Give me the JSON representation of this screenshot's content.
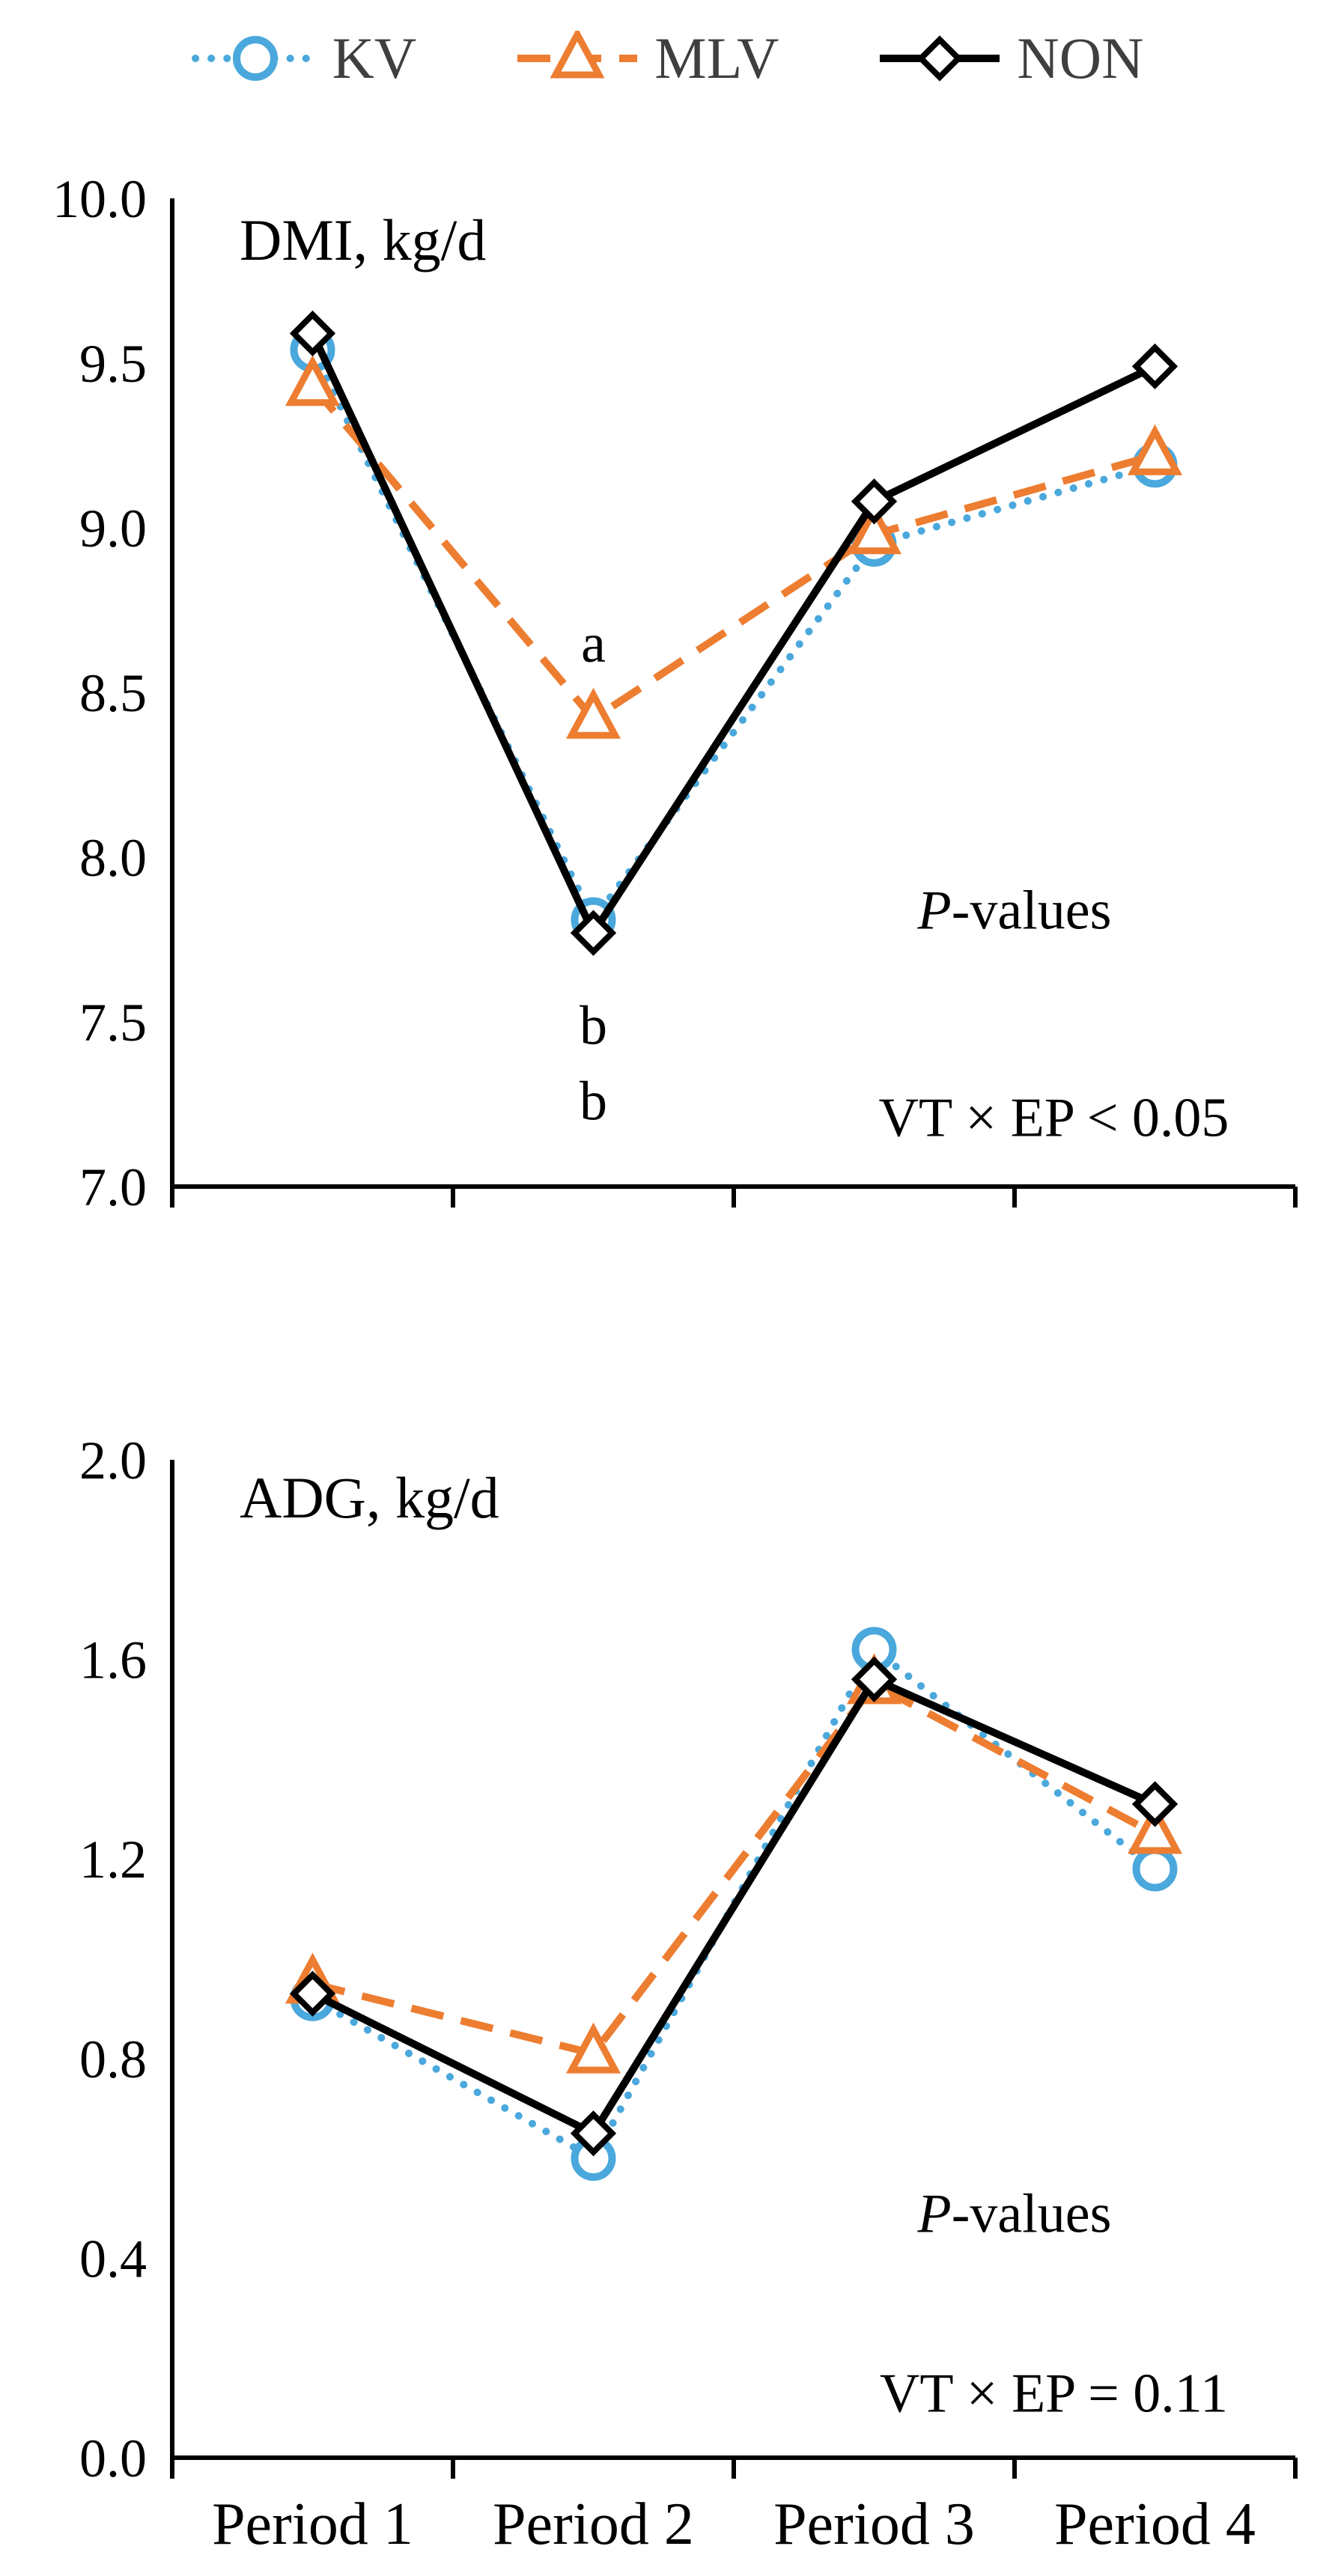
{
  "legend": {
    "items": [
      {
        "label": "KV",
        "color": "#4AA8DC",
        "marker": "circle",
        "line": "dotted"
      },
      {
        "label": "MLV",
        "color": "#ED7D31",
        "marker": "triangle",
        "line": "dashed"
      },
      {
        "label": "NON",
        "color": "#000000",
        "marker": "diamond",
        "line": "solid"
      }
    ]
  },
  "chart_data": [
    {
      "type": "line",
      "title": "DMI, kg/d",
      "categories": [
        "Period 1",
        "Period 2",
        "Period 3",
        "Period 4"
      ],
      "show_x_labels": false,
      "ylim": [
        7.0,
        10.0
      ],
      "ytick_values": [
        7.0,
        7.5,
        8.0,
        8.5,
        9.0,
        9.5,
        10.0
      ],
      "ytick_labels": [
        "7.0",
        "7.5",
        "8.0",
        "8.5",
        "9.0",
        "9.5",
        "10.0"
      ],
      "grid": false,
      "legend_position": "top",
      "series": [
        {
          "name": "KV",
          "values": [
            9.54,
            7.81,
            8.95,
            9.19
          ],
          "color": "#4AA8DC",
          "marker": "circle",
          "line": "dotted"
        },
        {
          "name": "MLV",
          "values": [
            9.43,
            8.42,
            8.98,
            9.22
          ],
          "color": "#ED7D31",
          "marker": "triangle",
          "line": "dashed"
        },
        {
          "name": "NON",
          "values": [
            9.59,
            7.77,
            9.08,
            9.49
          ],
          "color": "#000000",
          "marker": "diamond",
          "line": "solid"
        }
      ],
      "annotations": [
        {
          "text": "a",
          "x": 1,
          "y": 8.65
        },
        {
          "text": "b",
          "x": 1,
          "y": 7.49
        },
        {
          "text": "b",
          "x": 1,
          "y": 7.26
        },
        {
          "text": "-values",
          "italic_prefix": "P",
          "x": 2.5,
          "y": 7.84
        },
        {
          "text": "VT × EP < 0.05",
          "x": 2.64,
          "y": 7.21
        }
      ]
    },
    {
      "type": "line",
      "title": "ADG, kg/d",
      "categories": [
        "Period 1",
        "Period 2",
        "Period 3",
        "Period 4"
      ],
      "show_x_labels": true,
      "ylim": [
        0.0,
        2.0
      ],
      "ytick_values": [
        0.0,
        0.4,
        0.8,
        1.2,
        1.6,
        2.0
      ],
      "ytick_labels": [
        "0.0",
        "0.4",
        "0.8",
        "1.2",
        "1.6",
        "2.0"
      ],
      "grid": false,
      "legend_position": "top",
      "series": [
        {
          "name": "KV",
          "values": [
            0.92,
            0.6,
            1.62,
            1.18
          ],
          "color": "#4AA8DC",
          "marker": "circle",
          "line": "dotted"
        },
        {
          "name": "MLV",
          "values": [
            0.95,
            0.81,
            1.55,
            1.25
          ],
          "color": "#ED7D31",
          "marker": "triangle",
          "line": "dashed"
        },
        {
          "name": "NON",
          "values": [
            0.93,
            0.65,
            1.56,
            1.31
          ],
          "color": "#000000",
          "marker": "diamond",
          "line": "solid"
        }
      ],
      "annotations": [
        {
          "text": "-values",
          "italic_prefix": "P",
          "x": 2.5,
          "y": 0.49
        },
        {
          "text": "VT × EP = 0.11",
          "x": 2.64,
          "y": 0.13
        }
      ]
    }
  ]
}
